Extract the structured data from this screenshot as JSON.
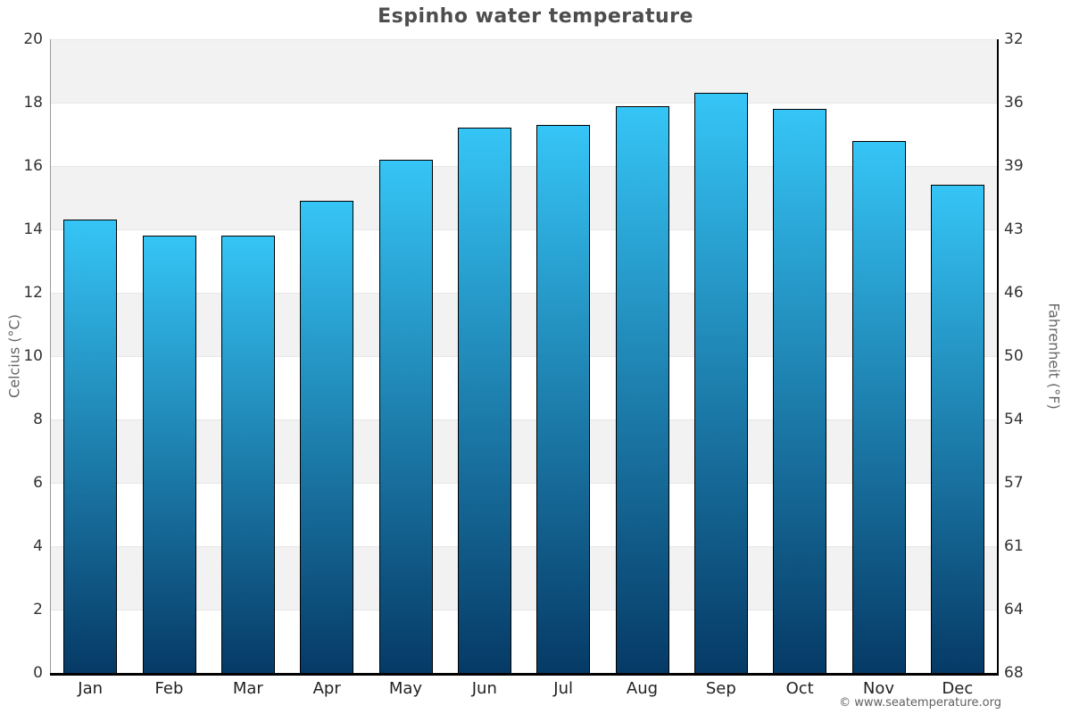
{
  "copyright": "© www.seatemperature.org",
  "chart_data": {
    "type": "bar",
    "title": "Espinho water temperature",
    "categories": [
      "Jan",
      "Feb",
      "Mar",
      "Apr",
      "May",
      "Jun",
      "Jul",
      "Aug",
      "Sep",
      "Oct",
      "Nov",
      "Dec"
    ],
    "values": [
      14.3,
      13.8,
      13.8,
      14.9,
      16.2,
      17.2,
      17.3,
      17.9,
      18.3,
      17.8,
      16.8,
      15.4
    ],
    "ylabel_left": "Celcius (°C)",
    "ylabel_right": "Fahrenheit (°F)",
    "xlabel": "",
    "ylim": [
      0,
      20
    ],
    "left_ticks": [
      20,
      18,
      16,
      14,
      12,
      10,
      8,
      6,
      4,
      2,
      0
    ],
    "right_tick_labels": [
      "68",
      "64",
      "61",
      "57",
      "54",
      "50",
      "46",
      "43",
      "39",
      "36",
      "32"
    ],
    "bands_celsius": [
      [
        18,
        20
      ],
      [
        14,
        16
      ],
      [
        10,
        12
      ],
      [
        6,
        8
      ],
      [
        2,
        4
      ]
    ],
    "grid": "on",
    "legend": "none",
    "colors": {
      "bar_gradient_top": "#35c5f6",
      "bar_gradient_bottom": "#063a66",
      "bar_border": "#000000",
      "band_fill": "#f2f2f2",
      "gridline": "#e6e6e6",
      "left_axis_line": "#999999",
      "right_axis_line": "#000000",
      "bottom_axis_line": "#000000",
      "title_text": "#4d4d4d",
      "tick_text": "#333333",
      "axis_title_text": "#666666"
    }
  }
}
